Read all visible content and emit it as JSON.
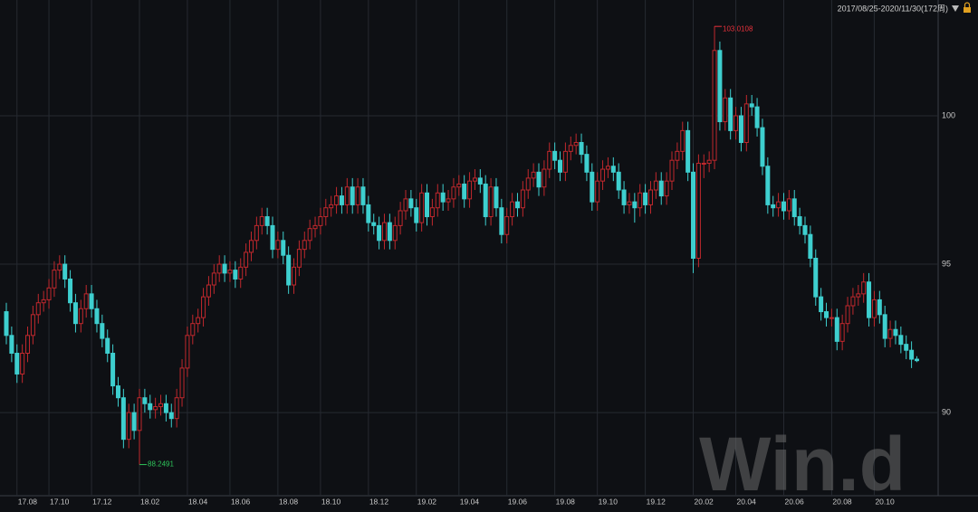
{
  "chart_data": {
    "type": "candlestick",
    "range_label": "2017/08/25-2020/11/30(172周)",
    "watermark": "Win.d",
    "up_color": "#c0282d",
    "down_color": "#3ecfcf",
    "high_label_color": "#e8323c",
    "low_label_color": "#2ec45a",
    "ylim": [
      87.2,
      103.9
    ],
    "yticks": [
      90,
      95,
      100
    ],
    "grid": true,
    "categories": [
      null,
      null,
      "17.08",
      null,
      null,
      null,
      null,
      null,
      "17.10",
      null,
      null,
      null,
      null,
      null,
      null,
      null,
      "17.12",
      null,
      null,
      null,
      null,
      null,
      null,
      null,
      null,
      "18.02",
      null,
      null,
      null,
      null,
      null,
      null,
      null,
      null,
      "18.04",
      null,
      null,
      null,
      null,
      null,
      null,
      null,
      "18.06",
      null,
      null,
      null,
      null,
      null,
      null,
      null,
      null,
      "18.08",
      null,
      null,
      null,
      null,
      null,
      null,
      null,
      "18.10",
      null,
      null,
      null,
      null,
      null,
      null,
      null,
      null,
      "18.12",
      null,
      null,
      null,
      null,
      null,
      null,
      null,
      null,
      "19.02",
      null,
      null,
      null,
      null,
      null,
      null,
      null,
      "19.04",
      null,
      null,
      null,
      null,
      null,
      null,
      null,
      null,
      "19.06",
      null,
      null,
      null,
      null,
      null,
      null,
      null,
      null,
      "19.08",
      null,
      null,
      null,
      null,
      null,
      null,
      null,
      "19.10",
      null,
      null,
      null,
      null,
      null,
      null,
      null,
      null,
      "19.12",
      null,
      null,
      null,
      null,
      null,
      null,
      null,
      null,
      "20.02",
      null,
      null,
      null,
      null,
      null,
      null,
      null,
      "20.04",
      null,
      null,
      null,
      null,
      null,
      null,
      null,
      null,
      "20.06",
      null,
      null,
      null,
      null,
      null,
      null,
      null,
      null,
      "20.08",
      null,
      null,
      null,
      null,
      null,
      null,
      null,
      "20.10",
      null,
      null,
      null,
      null,
      null,
      null,
      null,
      null
    ],
    "candles": [
      [
        93.4,
        93.7,
        92.3,
        92.6
      ],
      [
        92.6,
        92.9,
        91.7,
        92.0
      ],
      [
        92.0,
        92.3,
        91.0,
        91.3
      ],
      [
        91.3,
        92.3,
        91.0,
        92.0
      ],
      [
        92.0,
        92.9,
        91.7,
        92.6
      ],
      [
        92.6,
        93.6,
        92.3,
        93.3
      ],
      [
        93.3,
        94.0,
        93.0,
        93.7
      ],
      [
        93.7,
        94.1,
        93.4,
        93.8
      ],
      [
        93.8,
        94.5,
        93.5,
        94.2
      ],
      [
        94.2,
        95.1,
        93.9,
        94.8
      ],
      [
        94.8,
        95.3,
        94.5,
        95.0
      ],
      [
        95.0,
        95.3,
        94.2,
        94.5
      ],
      [
        94.5,
        94.8,
        93.4,
        93.7
      ],
      [
        93.7,
        94.0,
        92.7,
        93.0
      ],
      [
        93.0,
        93.8,
        92.7,
        93.5
      ],
      [
        93.5,
        94.3,
        93.2,
        94.0
      ],
      [
        94.0,
        94.3,
        93.2,
        93.5
      ],
      [
        93.5,
        93.8,
        92.7,
        93.0
      ],
      [
        93.0,
        93.3,
        92.2,
        92.5
      ],
      [
        92.5,
        92.8,
        91.7,
        92.0
      ],
      [
        92.0,
        92.3,
        90.6,
        90.9
      ],
      [
        90.9,
        91.2,
        90.2,
        90.5
      ],
      [
        90.5,
        90.8,
        88.8,
        89.1
      ],
      [
        89.1,
        90.3,
        88.8,
        90.0
      ],
      [
        90.0,
        90.3,
        89.1,
        89.4
      ],
      [
        89.4,
        90.8,
        88.2491,
        90.5
      ],
      [
        90.5,
        90.8,
        90.0,
        90.3
      ],
      [
        90.3,
        90.6,
        89.8,
        90.1
      ],
      [
        90.1,
        90.5,
        89.8,
        90.2
      ],
      [
        90.2,
        90.6,
        89.9,
        90.3
      ],
      [
        90.3,
        90.6,
        89.7,
        90.0
      ],
      [
        90.0,
        90.3,
        89.5,
        89.8
      ],
      [
        89.8,
        90.8,
        89.5,
        90.5
      ],
      [
        90.5,
        91.8,
        90.2,
        91.5
      ],
      [
        91.5,
        92.9,
        91.2,
        92.6
      ],
      [
        92.6,
        93.3,
        92.3,
        93.0
      ],
      [
        93.0,
        93.5,
        92.7,
        93.2
      ],
      [
        93.2,
        94.2,
        92.9,
        93.9
      ],
      [
        93.9,
        94.6,
        93.6,
        94.3
      ],
      [
        94.3,
        95.0,
        94.0,
        94.7
      ],
      [
        94.7,
        95.3,
        94.4,
        95.0
      ],
      [
        95.0,
        95.3,
        94.4,
        94.7
      ],
      [
        94.7,
        95.1,
        94.4,
        94.8
      ],
      [
        94.8,
        95.1,
        94.2,
        94.5
      ],
      [
        94.5,
        95.2,
        94.2,
        94.9
      ],
      [
        94.9,
        95.7,
        94.6,
        95.4
      ],
      [
        95.4,
        96.1,
        95.1,
        95.8
      ],
      [
        95.8,
        96.6,
        95.5,
        96.3
      ],
      [
        96.3,
        96.9,
        96.0,
        96.6
      ],
      [
        96.6,
        96.9,
        96.0,
        96.3
      ],
      [
        96.3,
        96.6,
        95.2,
        95.5
      ],
      [
        95.5,
        96.1,
        95.2,
        95.8
      ],
      [
        95.8,
        96.1,
        95.0,
        95.3
      ],
      [
        95.3,
        95.6,
        94.0,
        94.3
      ],
      [
        94.3,
        95.2,
        94.0,
        94.9
      ],
      [
        94.9,
        95.8,
        94.6,
        95.5
      ],
      [
        95.5,
        96.1,
        95.2,
        95.8
      ],
      [
        95.8,
        96.5,
        95.5,
        96.2
      ],
      [
        96.2,
        96.6,
        95.9,
        96.3
      ],
      [
        96.3,
        96.9,
        96.0,
        96.6
      ],
      [
        96.6,
        97.2,
        96.3,
        96.9
      ],
      [
        96.9,
        97.3,
        96.6,
        97.0
      ],
      [
        97.0,
        97.6,
        96.7,
        97.3
      ],
      [
        97.3,
        97.6,
        96.7,
        97.0
      ],
      [
        97.0,
        97.9,
        96.7,
        97.6
      ],
      [
        97.6,
        97.9,
        96.7,
        97.0
      ],
      [
        97.0,
        97.9,
        96.7,
        97.6
      ],
      [
        97.6,
        97.9,
        96.7,
        97.0
      ],
      [
        97.0,
        97.3,
        96.1,
        96.4
      ],
      [
        96.4,
        96.7,
        96.0,
        96.3
      ],
      [
        96.3,
        96.6,
        95.5,
        95.8
      ],
      [
        95.8,
        96.7,
        95.5,
        96.4
      ],
      [
        96.4,
        96.7,
        95.5,
        95.8
      ],
      [
        95.8,
        96.6,
        95.5,
        96.3
      ],
      [
        96.3,
        97.1,
        96.0,
        96.8
      ],
      [
        96.8,
        97.5,
        96.5,
        97.2
      ],
      [
        97.2,
        97.5,
        96.6,
        96.9
      ],
      [
        96.9,
        97.2,
        96.1,
        96.4
      ],
      [
        96.4,
        97.7,
        96.1,
        97.4
      ],
      [
        97.4,
        97.7,
        96.3,
        96.6
      ],
      [
        96.6,
        97.2,
        96.3,
        96.9
      ],
      [
        96.9,
        97.7,
        96.6,
        97.4
      ],
      [
        97.4,
        97.7,
        96.8,
        97.1
      ],
      [
        97.1,
        97.5,
        96.8,
        97.2
      ],
      [
        97.2,
        97.9,
        96.9,
        97.6
      ],
      [
        97.6,
        98.0,
        97.3,
        97.7
      ],
      [
        97.7,
        98.0,
        96.9,
        97.2
      ],
      [
        97.2,
        98.1,
        96.9,
        97.8
      ],
      [
        97.8,
        98.2,
        97.5,
        97.9
      ],
      [
        97.9,
        98.2,
        97.4,
        97.7
      ],
      [
        97.7,
        98.0,
        96.3,
        96.6
      ],
      [
        96.6,
        97.9,
        96.3,
        97.6
      ],
      [
        97.6,
        97.9,
        96.6,
        96.9
      ],
      [
        96.9,
        97.2,
        95.7,
        96.0
      ],
      [
        96.0,
        96.9,
        95.7,
        96.6
      ],
      [
        96.6,
        97.4,
        96.3,
        97.1
      ],
      [
        97.1,
        97.4,
        96.6,
        96.9
      ],
      [
        96.9,
        97.8,
        96.6,
        97.5
      ],
      [
        97.5,
        98.2,
        97.2,
        97.9
      ],
      [
        97.9,
        98.4,
        97.6,
        98.1
      ],
      [
        98.1,
        98.4,
        97.3,
        97.6
      ],
      [
        97.6,
        98.5,
        97.3,
        98.2
      ],
      [
        98.2,
        99.1,
        97.9,
        98.8
      ],
      [
        98.8,
        99.1,
        98.2,
        98.5
      ],
      [
        98.5,
        98.8,
        97.8,
        98.1
      ],
      [
        98.1,
        99.1,
        97.8,
        98.8
      ],
      [
        98.8,
        99.3,
        98.5,
        99.0
      ],
      [
        99.0,
        99.4,
        98.7,
        99.1
      ],
      [
        99.1,
        99.4,
        98.4,
        98.7
      ],
      [
        98.7,
        99.0,
        97.8,
        98.1
      ],
      [
        98.1,
        98.4,
        96.8,
        97.1
      ],
      [
        97.1,
        98.1,
        96.8,
        97.8
      ],
      [
        97.8,
        98.5,
        97.5,
        98.2
      ],
      [
        98.2,
        98.6,
        97.9,
        98.3
      ],
      [
        98.3,
        98.6,
        97.8,
        98.1
      ],
      [
        98.1,
        98.4,
        97.2,
        97.5
      ],
      [
        97.5,
        97.8,
        96.7,
        97.0
      ],
      [
        97.0,
        97.4,
        96.7,
        97.1
      ],
      [
        97.1,
        97.4,
        96.4,
        96.9
      ],
      [
        96.9,
        97.7,
        96.6,
        97.4
      ],
      [
        97.4,
        97.7,
        96.7,
        97.0
      ],
      [
        97.0,
        97.8,
        96.7,
        97.5
      ],
      [
        97.5,
        98.1,
        97.2,
        97.8
      ],
      [
        97.8,
        98.1,
        97.0,
        97.3
      ],
      [
        97.3,
        98.1,
        97.0,
        97.8
      ],
      [
        97.8,
        98.8,
        97.5,
        98.5
      ],
      [
        98.5,
        99.1,
        98.2,
        98.8
      ],
      [
        98.8,
        99.8,
        98.5,
        99.5
      ],
      [
        99.5,
        99.8,
        97.8,
        98.1
      ],
      [
        98.1,
        98.4,
        94.7,
        95.2
      ],
      [
        95.2,
        98.7,
        94.9,
        98.4
      ],
      [
        98.4,
        98.7,
        97.9,
        98.4
      ],
      [
        98.4,
        98.8,
        98.1,
        98.5
      ],
      [
        98.5,
        103.0108,
        98.2,
        102.2
      ],
      [
        102.2,
        102.5,
        99.5,
        99.8
      ],
      [
        99.8,
        100.9,
        99.5,
        100.6
      ],
      [
        100.6,
        100.9,
        99.2,
        99.5
      ],
      [
        99.5,
        100.3,
        99.2,
        100.0
      ],
      [
        100.0,
        100.3,
        98.8,
        99.1
      ],
      [
        99.1,
        100.7,
        98.8,
        100.4
      ],
      [
        100.4,
        100.7,
        100.0,
        100.3
      ],
      [
        100.3,
        100.6,
        99.3,
        99.6
      ],
      [
        99.6,
        99.9,
        98.0,
        98.3
      ],
      [
        98.3,
        98.6,
        96.7,
        97.0
      ],
      [
        97.0,
        97.3,
        96.6,
        96.9
      ],
      [
        96.9,
        97.4,
        96.6,
        97.1
      ],
      [
        97.1,
        97.4,
        96.5,
        96.8
      ],
      [
        96.8,
        97.5,
        96.5,
        97.2
      ],
      [
        97.2,
        97.5,
        96.3,
        96.6
      ],
      [
        96.6,
        96.9,
        96.0,
        96.3
      ],
      [
        96.3,
        96.6,
        95.7,
        96.0
      ],
      [
        96.0,
        96.3,
        94.9,
        95.2
      ],
      [
        95.2,
        95.5,
        93.6,
        93.9
      ],
      [
        93.9,
        94.2,
        93.1,
        93.4
      ],
      [
        93.4,
        93.7,
        92.9,
        93.2
      ],
      [
        93.2,
        93.5,
        92.9,
        93.2
      ],
      [
        93.2,
        93.5,
        92.1,
        92.4
      ],
      [
        92.4,
        93.3,
        92.1,
        93.0
      ],
      [
        93.0,
        93.9,
        92.7,
        93.6
      ],
      [
        93.6,
        94.2,
        93.3,
        93.9
      ],
      [
        93.9,
        94.3,
        93.6,
        94.0
      ],
      [
        94.0,
        94.7,
        93.7,
        94.4
      ],
      [
        94.4,
        94.7,
        92.9,
        93.2
      ],
      [
        93.2,
        94.1,
        92.9,
        93.8
      ],
      [
        93.8,
        94.1,
        93.0,
        93.3
      ],
      [
        93.3,
        93.6,
        92.2,
        92.5
      ],
      [
        92.5,
        93.1,
        92.2,
        92.8
      ],
      [
        92.8,
        93.1,
        92.3,
        92.6
      ],
      [
        92.6,
        92.9,
        92.0,
        92.3
      ],
      [
        92.3,
        92.6,
        91.8,
        92.1
      ],
      [
        92.1,
        92.4,
        91.5,
        91.8
      ],
      [
        91.8,
        91.9,
        91.7,
        91.75
      ]
    ]
  }
}
